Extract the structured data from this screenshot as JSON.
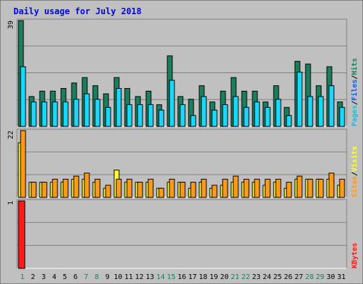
{
  "title": "Daily usage for July 2018",
  "colors": {
    "background": "#c0c0c0",
    "title": "#0000ff",
    "hits": "#1b7f5e",
    "files": "#19d8ff",
    "pages": "#29b7de",
    "visits": "#ffff33",
    "sites": "#ff9a19",
    "kbytes": "#ff1919",
    "weekend_day": "#1b7f5e",
    "weekday": "#000000"
  },
  "chart_data": [
    {
      "type": "bar",
      "name": "hits-files-pages",
      "legend": [
        {
          "label": "Pages",
          "color": "#29b7de"
        },
        {
          "label": "/",
          "color": "#000000"
        },
        {
          "label": "Files",
          "color": "#1d5bd8"
        },
        {
          "label": "/",
          "color": "#000000"
        },
        {
          "label": "Hits",
          "color": "#1b7f5e"
        }
      ],
      "y_max_label": "39",
      "ylim": [
        0,
        39
      ],
      "categories": [
        "1",
        "2",
        "3",
        "4",
        "5",
        "6",
        "7",
        "8",
        "9",
        "10",
        "11",
        "12",
        "13",
        "14",
        "15",
        "16",
        "17",
        "18",
        "19",
        "20",
        "21",
        "22",
        "23",
        "24",
        "25",
        "26",
        "27",
        "28",
        "29",
        "30",
        "31"
      ],
      "series": [
        {
          "name": "Hits",
          "values": [
            39,
            11,
            13,
            13,
            14,
            16,
            18,
            15,
            12,
            18,
            14,
            11,
            13,
            8,
            26,
            11,
            10,
            15,
            9,
            13,
            18,
            13,
            13,
            9,
            15,
            7,
            24,
            23,
            15,
            22,
            9
          ]
        },
        {
          "name": "Files",
          "values": [
            22,
            9,
            9,
            9,
            9,
            10,
            12,
            10,
            7,
            14,
            8,
            8,
            8,
            6,
            17,
            8,
            4,
            11,
            6,
            8,
            11,
            7,
            9,
            7,
            10,
            4,
            20,
            11,
            11,
            15,
            7
          ]
        }
      ]
    },
    {
      "type": "bar",
      "name": "visits-sites",
      "legend": [
        {
          "label": "Sites",
          "color": "#ff9a19"
        },
        {
          "label": "/",
          "color": "#000000"
        },
        {
          "label": "Visits",
          "color": "#ffff33"
        }
      ],
      "y_max_label": "22",
      "ylim": [
        0,
        22
      ],
      "categories": [
        "1",
        "2",
        "3",
        "4",
        "5",
        "6",
        "7",
        "8",
        "9",
        "10",
        "11",
        "12",
        "13",
        "14",
        "15",
        "16",
        "17",
        "18",
        "19",
        "20",
        "21",
        "22",
        "23",
        "24",
        "25",
        "26",
        "27",
        "28",
        "29",
        "30",
        "31"
      ],
      "series": [
        {
          "name": "Visits",
          "values": [
            18,
            5,
            5,
            5,
            5,
            6,
            6,
            5,
            3,
            9,
            5,
            5,
            5,
            3,
            5,
            5,
            3,
            5,
            3,
            4,
            5,
            5,
            5,
            4,
            5,
            3,
            6,
            6,
            6,
            6,
            4
          ]
        },
        {
          "name": "Sites",
          "values": [
            22,
            5,
            5,
            6,
            6,
            7,
            8,
            6,
            4,
            6,
            6,
            5,
            6,
            3,
            6,
            5,
            5,
            6,
            4,
            6,
            7,
            6,
            6,
            6,
            6,
            5,
            7,
            6,
            6,
            8,
            6
          ]
        }
      ]
    },
    {
      "type": "bar",
      "name": "kbytes",
      "legend": [
        {
          "label": "KBytes",
          "color": "#ff1919"
        }
      ],
      "y_max_label": "1",
      "ylim": [
        0,
        1
      ],
      "categories": [
        "1",
        "2",
        "3",
        "4",
        "5",
        "6",
        "7",
        "8",
        "9",
        "10",
        "11",
        "12",
        "13",
        "14",
        "15",
        "16",
        "17",
        "18",
        "19",
        "20",
        "21",
        "22",
        "23",
        "24",
        "25",
        "26",
        "27",
        "28",
        "29",
        "30",
        "31"
      ],
      "series": [
        {
          "name": "KBytes",
          "values": [
            1,
            0,
            0,
            0,
            0,
            0,
            0,
            0,
            0,
            0,
            0,
            0,
            0,
            0,
            0,
            0,
            0,
            0,
            0,
            0,
            0,
            0,
            0,
            0,
            0,
            0,
            0,
            0,
            0,
            0,
            0
          ]
        }
      ]
    }
  ],
  "weekend_days": [
    "1",
    "7",
    "8",
    "14",
    "15",
    "21",
    "22",
    "28",
    "29"
  ]
}
